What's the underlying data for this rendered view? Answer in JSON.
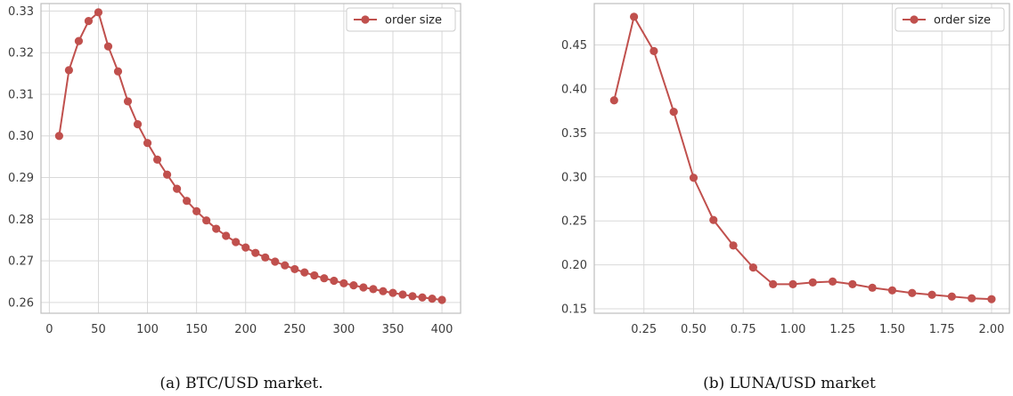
{
  "colors": {
    "series": "#c0504d",
    "grid": "#d9d9d9",
    "axes": "#bfbfbf",
    "background": "#ffffff"
  },
  "chart_data": [
    {
      "type": "line",
      "caption": "(a)  BTC/USD market.",
      "x": [
        10,
        20,
        30,
        40,
        50,
        60,
        70,
        80,
        90,
        100,
        110,
        120,
        130,
        140,
        150,
        160,
        170,
        180,
        190,
        200,
        210,
        220,
        230,
        240,
        250,
        260,
        270,
        280,
        290,
        300,
        310,
        320,
        330,
        340,
        350,
        360,
        370,
        380,
        390,
        400
      ],
      "series": [
        {
          "name": "order size",
          "values": [
            0.3,
            0.3158,
            0.3228,
            0.3276,
            0.3297,
            0.3215,
            0.3155,
            0.3083,
            0.3028,
            0.2983,
            0.2943,
            0.2907,
            0.2873,
            0.2844,
            0.2819,
            0.2797,
            0.2777,
            0.276,
            0.2745,
            0.2732,
            0.2719,
            0.2708,
            0.2698,
            0.2689,
            0.268,
            0.2672,
            0.2665,
            0.2658,
            0.2652,
            0.2646,
            0.2641,
            0.2636,
            0.2632,
            0.2627,
            0.2623,
            0.2619,
            0.2615,
            0.2612,
            0.2609,
            0.2606
          ]
        }
      ],
      "xticks": [
        0,
        50,
        100,
        150,
        200,
        250,
        300,
        350,
        400
      ],
      "xtick_labels": [
        "0",
        "50",
        "100",
        "150",
        "200",
        "250",
        "300",
        "350",
        "400"
      ],
      "yticks": [
        0.26,
        0.27,
        0.28,
        0.29,
        0.3,
        0.31,
        0.32,
        0.33
      ],
      "ytick_labels": [
        "0.26",
        "0.27",
        "0.28",
        "0.29",
        "0.30",
        "0.31",
        "0.32",
        "0.33"
      ],
      "xlim": [
        -8.5,
        419
      ],
      "ylim": [
        0.2574,
        0.3318
      ],
      "grid": true,
      "legend": "top-right"
    },
    {
      "type": "line",
      "caption": "(b)  LUNA/USD market",
      "x": [
        0.1,
        0.2,
        0.3,
        0.4,
        0.5,
        0.6,
        0.7,
        0.8,
        0.9,
        1.0,
        1.1,
        1.2,
        1.3,
        1.4,
        1.5,
        1.6,
        1.7,
        1.8,
        1.9,
        2.0
      ],
      "series": [
        {
          "name": "order size",
          "values": [
            0.387,
            0.482,
            0.443,
            0.374,
            0.299,
            0.251,
            0.222,
            0.197,
            0.178,
            0.178,
            0.18,
            0.181,
            0.178,
            0.174,
            0.171,
            0.168,
            0.166,
            0.164,
            0.162,
            0.161
          ]
        }
      ],
      "xticks": [
        0.25,
        0.5,
        0.75,
        1.0,
        1.25,
        1.5,
        1.75,
        2.0
      ],
      "xtick_labels": [
        "0.25",
        "0.50",
        "0.75",
        "1.00",
        "1.25",
        "1.50",
        "1.75",
        "2.00"
      ],
      "yticks": [
        0.15,
        0.2,
        0.25,
        0.3,
        0.35,
        0.4,
        0.45
      ],
      "ytick_labels": [
        "0.15",
        "0.20",
        "0.25",
        "0.30",
        "0.35",
        "0.40",
        "0.45"
      ],
      "xlim": [
        0.0,
        2.09
      ],
      "ylim": [
        0.145,
        0.497
      ],
      "grid": true,
      "legend": "top-right"
    }
  ]
}
